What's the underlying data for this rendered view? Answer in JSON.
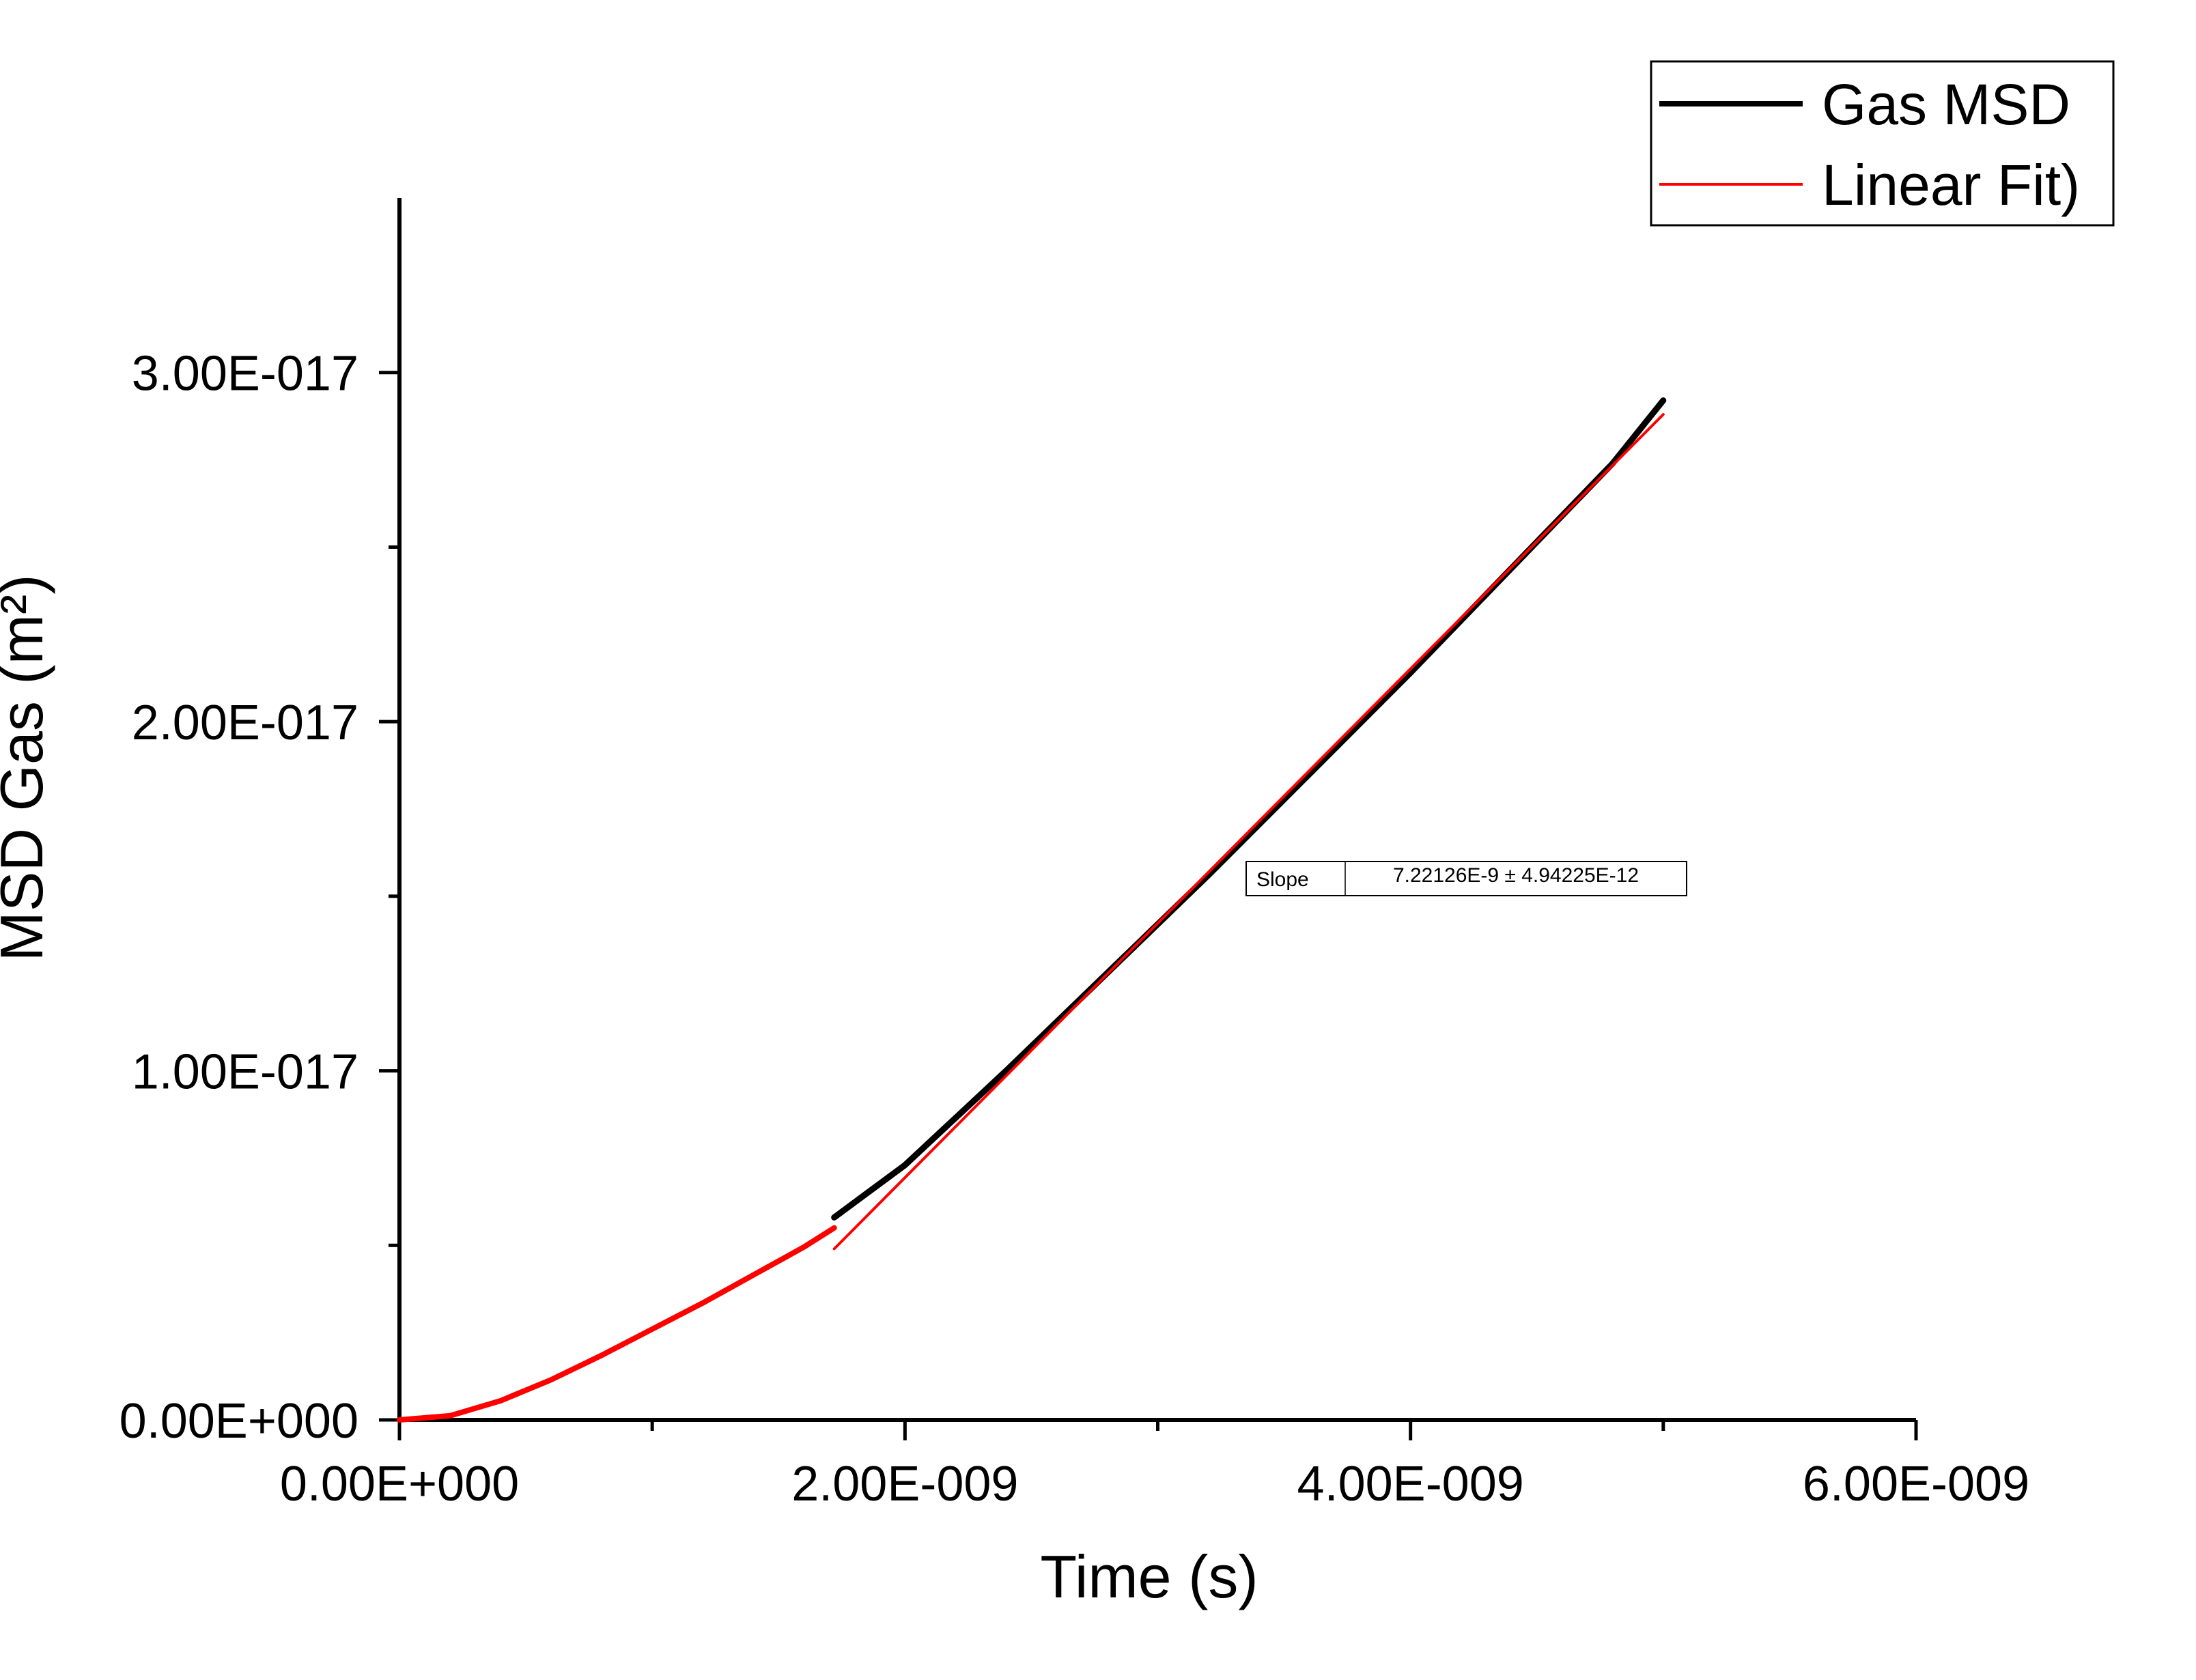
{
  "chart_data": {
    "type": "line",
    "xlabel": "Time (s)",
    "ylabel": "MSD Gas (m²)",
    "xlim": [
      0,
      6e-09
    ],
    "ylim": [
      0,
      3.5e-17
    ],
    "x_major_ticks": [
      0,
      2e-09,
      4e-09,
      6e-09
    ],
    "x_tick_labels": [
      "0.00E+000",
      "2.00E-009",
      "4.00E-009",
      "6.00E-009"
    ],
    "x_minor_ticks": [
      1e-09,
      3e-09,
      5e-09
    ],
    "y_major_ticks": [
      0,
      1e-17,
      2e-17,
      3e-17
    ],
    "y_tick_labels": [
      "0.00E+000",
      "1.00E-017",
      "2.00E-017",
      "3.00E-017"
    ],
    "y_minor_ticks": [
      5e-18,
      1.5e-17,
      2.5e-17
    ],
    "grid": false,
    "legend_position": "top-right",
    "series": [
      {
        "name": "Gas MSD",
        "color": "#000000",
        "x": [
          1.72e-09,
          2e-09,
          2.4e-09,
          2.8e-09,
          3.2e-09,
          3.6e-09,
          4e-09,
          4.4e-09,
          4.8e-09,
          5e-09
        ],
        "y": [
          5.8e-18,
          7.3e-18,
          1e-17,
          1.28e-17,
          1.56e-17,
          1.85e-17,
          2.14e-17,
          2.44e-17,
          2.74e-17,
          2.92e-17
        ]
      },
      {
        "name": "Linear Fit)",
        "color": "#ff0000",
        "x": [
          0,
          2e-10,
          4e-10,
          6e-10,
          8e-10,
          1e-09,
          1.2e-09,
          1.4e-09,
          1.6e-09,
          1.72e-09
        ],
        "y": [
          0,
          1.2e-19,
          5.5e-19,
          1.15e-18,
          1.85e-18,
          2.6e-18,
          3.35e-18,
          4.15e-18,
          4.95e-18,
          5.5e-18
        ]
      },
      {
        "name": "Linear Fit)",
        "color": "#ff0000",
        "x": [
          1.72e-09,
          5e-09
        ],
        "y": [
          4.9e-18,
          2.88e-17
        ]
      }
    ],
    "annotations": [
      {
        "label": "Slope",
        "value": "7.22126E-9 ± 4.94225E-12"
      }
    ]
  }
}
